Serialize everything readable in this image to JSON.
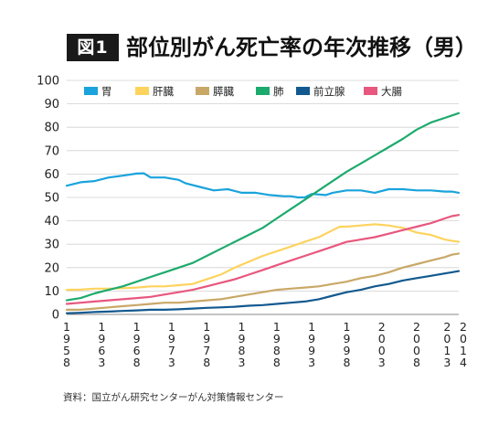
{
  "figure_label": "図1",
  "title": "部位別がん死亡率の年次推移（男）",
  "source": "資料：国立がん研究センターがん対策情報センター",
  "colors": {
    "stomach": "#1aa3dc",
    "liver": "#fdd35e",
    "pancreas": "#c9a867",
    "lung": "#1daa6d",
    "prostate": "#12598f",
    "colon": "#e8577e",
    "grid": "#d0d0d0"
  },
  "chart_data": {
    "type": "line",
    "title": "部位別がん死亡率の年次推移（男）",
    "xlabel": "",
    "ylabel": "",
    "xlim": [
      1958,
      2014
    ],
    "ylim": [
      0,
      100
    ],
    "yticks": [
      0,
      10,
      20,
      30,
      40,
      50,
      60,
      70,
      80,
      90,
      100
    ],
    "xticks": [
      "1958",
      "1963",
      "1968",
      "1973",
      "1978",
      "1983",
      "1988",
      "1993",
      "1998",
      "2003",
      "2008",
      "2013",
      "2014"
    ],
    "grid": true,
    "legend_position": "top-left",
    "series": [
      {
        "name": "胃",
        "color": "#1aa3dc",
        "x": [
          1958,
          1960,
          1962,
          1964,
          1966,
          1968,
          1969,
          1970,
          1972,
          1974,
          1975,
          1977,
          1979,
          1981,
          1983,
          1985,
          1987,
          1989,
          1990,
          1991,
          1992,
          1993,
          1995,
          1996,
          1998,
          2000,
          2002,
          2004,
          2006,
          2008,
          2010,
          2012,
          2013,
          2014
        ],
        "values": [
          55,
          56.5,
          57,
          58.5,
          59.3,
          60.2,
          60.3,
          58.5,
          58.5,
          57.5,
          56,
          54.5,
          53,
          53.5,
          52,
          52,
          51,
          50.5,
          50.5,
          50,
          50,
          51.5,
          51,
          52,
          53,
          53,
          52,
          53.5,
          53.5,
          53,
          53,
          52.5,
          52.5,
          52
        ]
      },
      {
        "name": "肝臓",
        "color": "#fdd35e",
        "x": [
          1958,
          1960,
          1962,
          1964,
          1966,
          1968,
          1970,
          1972,
          1974,
          1976,
          1978,
          1980,
          1982,
          1984,
          1986,
          1988,
          1990,
          1992,
          1994,
          1996,
          1997,
          1998,
          2000,
          2002,
          2004,
          2006,
          2008,
          2010,
          2012,
          2013,
          2014
        ],
        "values": [
          10.5,
          10.6,
          11,
          11,
          11.2,
          11.5,
          12,
          12,
          12.5,
          13,
          15,
          17,
          20,
          22.5,
          25,
          27,
          29,
          31,
          33,
          36,
          37.5,
          37.5,
          38,
          38.5,
          38,
          37,
          35,
          34,
          32,
          31.5,
          31
        ]
      },
      {
        "name": "膵臓",
        "color": "#c9a867",
        "x": [
          1958,
          1960,
          1962,
          1964,
          1966,
          1968,
          1970,
          1972,
          1974,
          1976,
          1978,
          1980,
          1982,
          1984,
          1986,
          1988,
          1990,
          1992,
          1994,
          1996,
          1998,
          2000,
          2002,
          2004,
          2006,
          2008,
          2010,
          2012,
          2013,
          2014
        ],
        "values": [
          2,
          2,
          2.5,
          3,
          3.5,
          4,
          4.5,
          5,
          5,
          5.5,
          6,
          6.5,
          7.5,
          8.5,
          9.5,
          10.5,
          11,
          11.5,
          12,
          13,
          14,
          15.5,
          16.5,
          18,
          20,
          21.5,
          23,
          24.5,
          25.5,
          26
        ]
      },
      {
        "name": "肺",
        "color": "#1daa6d",
        "x": [
          1958,
          1960,
          1962,
          1964,
          1966,
          1968,
          1970,
          1972,
          1974,
          1976,
          1978,
          1980,
          1982,
          1984,
          1986,
          1988,
          1990,
          1992,
          1994,
          1996,
          1998,
          2000,
          2002,
          2004,
          2006,
          2008,
          2010,
          2012,
          2013,
          2014
        ],
        "values": [
          6,
          7,
          9,
          10.5,
          12,
          14,
          16,
          18,
          20,
          22,
          25,
          28,
          31,
          34,
          37,
          41,
          45,
          49,
          53,
          57,
          61,
          64.5,
          68,
          71.5,
          75,
          79,
          82,
          84,
          85,
          86
        ]
      },
      {
        "name": "前立腺",
        "color": "#12598f",
        "x": [
          1958,
          1960,
          1962,
          1964,
          1966,
          1968,
          1970,
          1972,
          1974,
          1976,
          1978,
          1980,
          1982,
          1984,
          1986,
          1988,
          1990,
          1992,
          1994,
          1996,
          1998,
          2000,
          2002,
          2004,
          2006,
          2008,
          2010,
          2012,
          2013,
          2014
        ],
        "values": [
          0.5,
          0.7,
          1,
          1.2,
          1.5,
          1.7,
          2,
          2,
          2.2,
          2.5,
          2.8,
          3,
          3.3,
          3.7,
          4,
          4.5,
          5,
          5.5,
          6.5,
          8,
          9.5,
          10.5,
          12,
          13,
          14.5,
          15.5,
          16.5,
          17.5,
          18,
          18.5
        ]
      },
      {
        "name": "大腸",
        "color": "#e8577e",
        "x": [
          1958,
          1960,
          1962,
          1964,
          1966,
          1968,
          1970,
          1972,
          1974,
          1976,
          1978,
          1980,
          1982,
          1984,
          1986,
          1988,
          1990,
          1992,
          1994,
          1996,
          1998,
          2000,
          2002,
          2004,
          2006,
          2008,
          2010,
          2012,
          2013,
          2014
        ],
        "values": [
          4.5,
          5,
          5.5,
          6,
          6.5,
          7,
          7.5,
          8.5,
          9.5,
          10.5,
          12,
          13.5,
          15,
          17,
          19,
          21,
          23,
          25,
          27,
          29,
          31,
          32,
          33,
          34.5,
          36,
          37.5,
          39,
          41,
          42,
          42.5
        ]
      }
    ]
  }
}
